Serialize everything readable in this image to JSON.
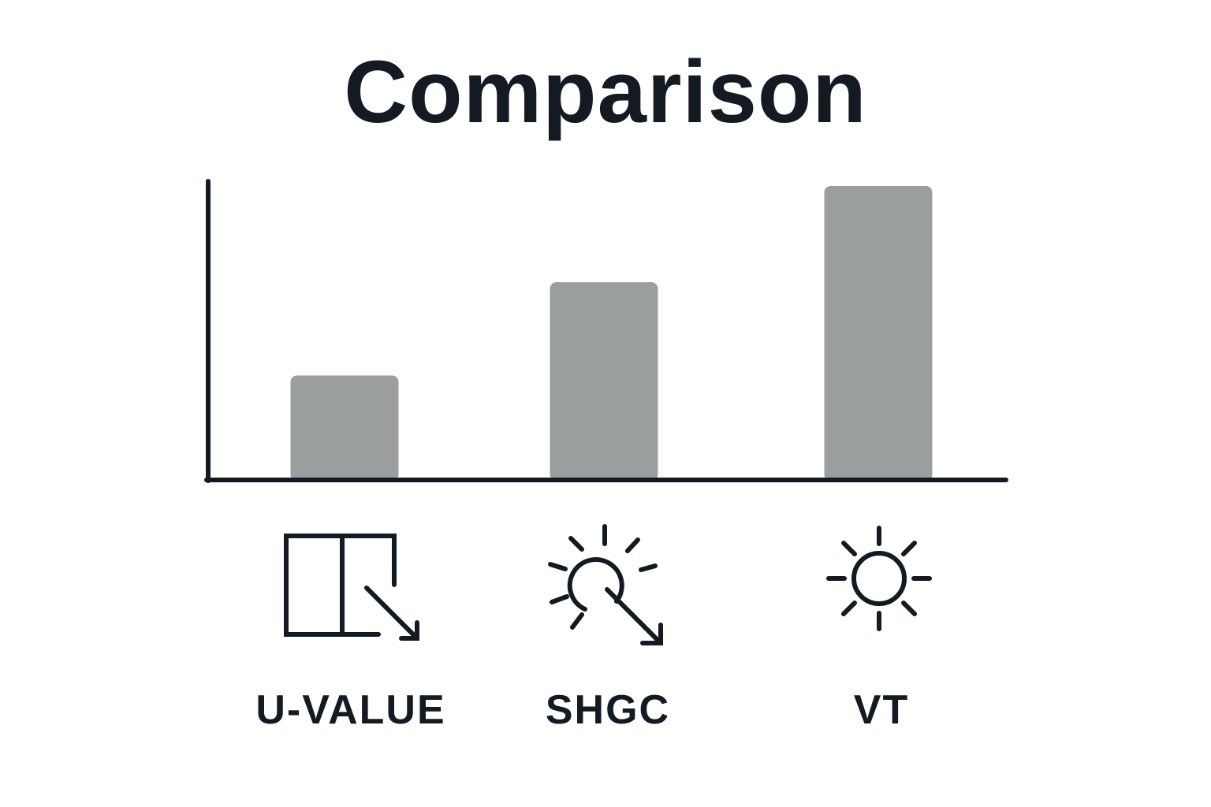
{
  "chart_data": {
    "type": "bar",
    "title": "Comparison",
    "categories": [
      "U-VALUE",
      "SHGC",
      "VT"
    ],
    "values": [
      35,
      67,
      100
    ],
    "ylim": [
      0,
      100
    ],
    "xlabel": "",
    "ylabel": "",
    "grid": false,
    "legend": "none",
    "icons": [
      "window-heat-loss-icon",
      "solar-heat-gain-icon",
      "sun-icon"
    ],
    "colors": {
      "bar": "#9b9e9f",
      "axis": "#141a22",
      "text": "#141a22"
    }
  }
}
